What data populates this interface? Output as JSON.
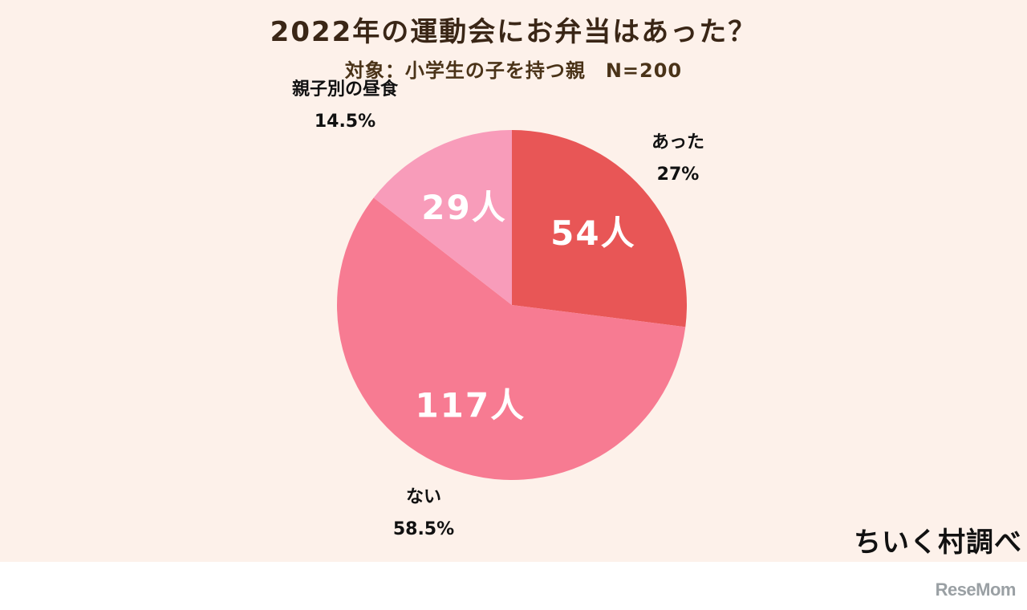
{
  "title": "2022年の運動会にお弁当はあった？",
  "subtitle": "対象：小学生の子を持つ親　N=200",
  "credit": "ちいく村調べ",
  "watermark": "ReseMom",
  "chart_data": {
    "type": "pie",
    "title": "2022年の運動会にお弁当はあった？",
    "subtitle": "対象：小学生の子を持つ親　N=200",
    "total": 200,
    "start_angle_deg": 0,
    "direction": "clockwise",
    "slices": [
      {
        "category": "あった",
        "count": 54,
        "value_label": "54人",
        "percent": 27,
        "percent_label": "27%",
        "color": "#e85656"
      },
      {
        "category": "ない",
        "count": 117,
        "value_label": "117人",
        "percent": 58.5,
        "percent_label": "58.5%",
        "color": "#f77b92"
      },
      {
        "category": "親子別の昼食",
        "count": 29,
        "value_label": "29人",
        "percent": 14.5,
        "percent_label": "14.5%",
        "color": "#f89cba"
      }
    ]
  }
}
